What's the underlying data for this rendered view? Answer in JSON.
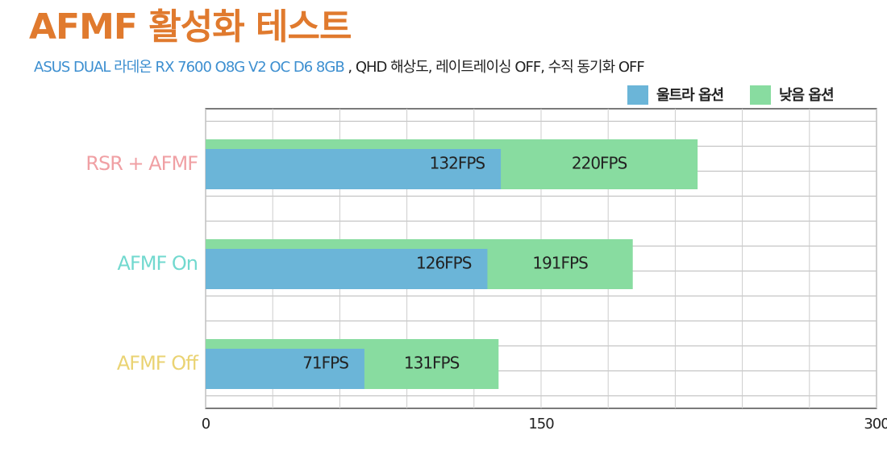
{
  "chart_data": {
    "type": "bar",
    "orientation": "horizontal",
    "title": "AFMF 활성화 테스트",
    "subtitle": [
      {
        "text": "ASUS DUAL 라데온 RX 7600 O8G V2 OC D6 8GB",
        "color": "#3d8fd0"
      },
      {
        "text": " , QHD 해상도, 레이트레이싱 OFF, 수직 동기화 OFF",
        "color": "#222222"
      }
    ],
    "categories": [
      "RSR + AFMF",
      "AFMF On",
      "AFMF Off"
    ],
    "category_colors": [
      "#f0a0a4",
      "#72d9cf",
      "#ead373"
    ],
    "series": [
      {
        "name": "낮음 옵션",
        "color": "#88dca0",
        "values": [
          220,
          191,
          131
        ],
        "value_labels": [
          "220FPS",
          "191FPS",
          "131FPS"
        ]
      },
      {
        "name": "울트라 옵션",
        "color": "#6bb5d8",
        "values": [
          132,
          126,
          71
        ],
        "value_labels": [
          "132FPS",
          "126FPS",
          "71FPS"
        ]
      }
    ],
    "legend_order": [
      1,
      0
    ],
    "xlim": [
      0,
      300
    ],
    "xticks": [
      0,
      150,
      300
    ],
    "minor_xticks": [
      30,
      60,
      90,
      120,
      180,
      210,
      240,
      270
    ],
    "grid": true
  }
}
